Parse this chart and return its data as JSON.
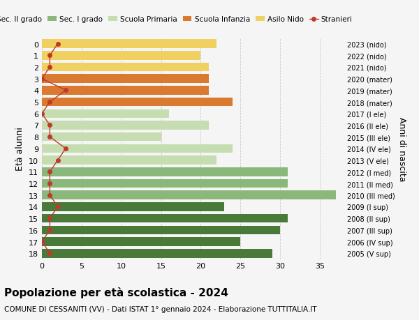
{
  "ages": [
    18,
    17,
    16,
    15,
    14,
    13,
    12,
    11,
    10,
    9,
    8,
    7,
    6,
    5,
    4,
    3,
    2,
    1,
    0
  ],
  "bar_values": [
    29,
    25,
    30,
    31,
    23,
    37,
    31,
    31,
    22,
    24,
    15,
    21,
    16,
    24,
    21,
    21,
    21,
    20,
    22
  ],
  "stranieri": [
    1,
    0,
    1,
    1,
    2,
    1,
    1,
    1,
    2,
    3,
    1,
    1,
    0,
    1,
    3,
    0,
    1,
    1,
    2
  ],
  "right_labels": [
    "2005 (V sup)",
    "2006 (IV sup)",
    "2007 (III sup)",
    "2008 (II sup)",
    "2009 (I sup)",
    "2010 (III med)",
    "2011 (II med)",
    "2012 (I med)",
    "2013 (V ele)",
    "2014 (IV ele)",
    "2015 (III ele)",
    "2016 (II ele)",
    "2017 (I ele)",
    "2018 (mater)",
    "2019 (mater)",
    "2020 (mater)",
    "2021 (nido)",
    "2022 (nido)",
    "2023 (nido)"
  ],
  "bar_colors": [
    "#4a7a3a",
    "#4a7a3a",
    "#4a7a3a",
    "#4a7a3a",
    "#4a7a3a",
    "#8ab87a",
    "#8ab87a",
    "#8ab87a",
    "#c5ddb0",
    "#c5ddb0",
    "#c5ddb0",
    "#c5ddb0",
    "#c5ddb0",
    "#d97a30",
    "#d97a30",
    "#d97a30",
    "#f0d060",
    "#f0d060",
    "#f0d060"
  ],
  "legend_colors": [
    "#4a7a3a",
    "#8ab87a",
    "#c5ddb0",
    "#d97a30",
    "#f0d060",
    "#c0392b"
  ],
  "legend_labels": [
    "Sec. II grado",
    "Sec. I grado",
    "Scuola Primaria",
    "Scuola Infanzia",
    "Asilo Nido",
    "Stranieri"
  ],
  "stranieri_color": "#c0392b",
  "title": "Popolazione per età scolastica - 2024",
  "subtitle": "COMUNE DI CESSANITI (VV) - Dati ISTAT 1° gennaio 2024 - Elaborazione TUTTITALIA.IT",
  "ylabel": "Età alunni",
  "right_ylabel": "Anni di nascita",
  "xlim": [
    0,
    38
  ],
  "xticks": [
    0,
    5,
    10,
    15,
    20,
    25,
    30,
    35
  ],
  "background_color": "#f5f5f5"
}
